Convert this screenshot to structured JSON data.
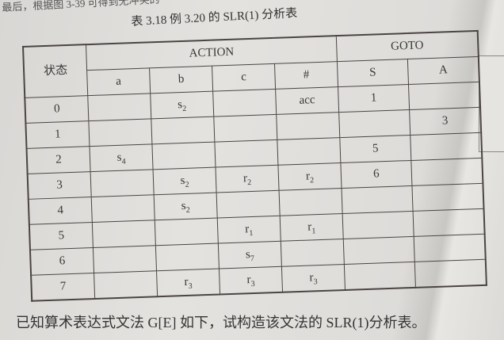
{
  "page": {
    "top_text": "最后，根据图 3-39 可得到无冲突的",
    "caption": "表 3.18   例 3.20 的 SLR(1) 分析表",
    "bottom_text": "已知算术表达式文法 G[E] 如下，试构造该文法的 SLR(1)分析表。"
  },
  "table": {
    "state_header": "状态",
    "action_header": "ACTION",
    "goto_header": "GOTO",
    "action_columns": [
      "a",
      "b",
      "c",
      "#"
    ],
    "goto_columns": [
      "S",
      "A"
    ],
    "rows": [
      {
        "state": "0",
        "cells": [
          "",
          "s2",
          "",
          "acc",
          "1",
          ""
        ]
      },
      {
        "state": "1",
        "cells": [
          "",
          "",
          "",
          "",
          "",
          "3"
        ]
      },
      {
        "state": "2",
        "cells": [
          "s4",
          "",
          "",
          "",
          "5",
          ""
        ]
      },
      {
        "state": "3",
        "cells": [
          "",
          "s2",
          "r2",
          "r2",
          "6",
          ""
        ]
      },
      {
        "state": "4",
        "cells": [
          "",
          "s2",
          "",
          "",
          "",
          ""
        ]
      },
      {
        "state": "5",
        "cells": [
          "",
          "",
          "r1",
          "r1",
          "",
          ""
        ]
      },
      {
        "state": "6",
        "cells": [
          "",
          "",
          "s7",
          "",
          "",
          ""
        ]
      },
      {
        "state": "7",
        "cells": [
          "",
          "r3",
          "r3",
          "r3",
          "",
          ""
        ]
      }
    ]
  }
}
